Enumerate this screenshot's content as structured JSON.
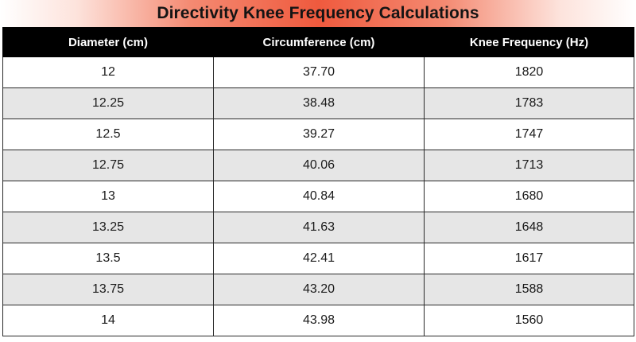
{
  "title": "Directivity Knee Frequency Calculations",
  "table": {
    "headers": [
      "Diameter (cm)",
      "Circumference (cm)",
      "Knee Frequency (Hz)"
    ],
    "rows": [
      [
        "12",
        "37.70",
        "1820"
      ],
      [
        "12.25",
        "38.48",
        "1783"
      ],
      [
        "12.5",
        "39.27",
        "1747"
      ],
      [
        "12.75",
        "40.06",
        "1713"
      ],
      [
        "13",
        "40.84",
        "1680"
      ],
      [
        "13.25",
        "41.63",
        "1648"
      ],
      [
        "13.5",
        "42.41",
        "1617"
      ],
      [
        "13.75",
        "43.20",
        "1588"
      ],
      [
        "14",
        "43.98",
        "1560"
      ]
    ]
  },
  "colors": {
    "title_gradient_center": "#ef5a3e",
    "header_background": "#000000",
    "stripe_row_background": "#e6e6e6"
  }
}
